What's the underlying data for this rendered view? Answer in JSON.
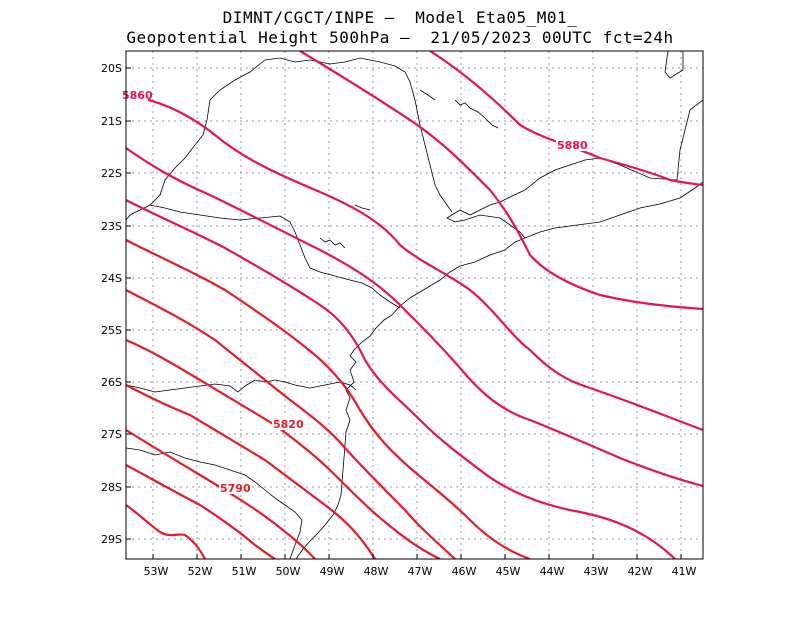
{
  "title": {
    "line1": "DIMNT/CGCT/INPE –  Model Eta05_M01_",
    "line2": "Geopotential Height 500hPa –  21/05/2023 00UTC fct=24h"
  },
  "axes": {
    "lat_labels": [
      "20S",
      "21S",
      "22S",
      "23S",
      "24S",
      "25S",
      "26S",
      "27S",
      "28S",
      "29S"
    ],
    "lon_labels": [
      "53W",
      "52W",
      "51W",
      "50W",
      "49W",
      "48W",
      "47W",
      "46W",
      "45W",
      "44W",
      "43W",
      "42W",
      "41W"
    ]
  },
  "contour_labels": [
    {
      "text": "5860",
      "color": "#e8105a"
    },
    {
      "text": "5880",
      "color": "#e8105a"
    },
    {
      "text": "5820",
      "color": "#e81a28"
    },
    {
      "text": "5790",
      "color": "#e81a28"
    }
  ],
  "colors": {
    "magenta_contours": "#e8105a",
    "red_contours": "#e81a28",
    "coastline": "#000000",
    "grid": "#9a9a9a"
  }
}
